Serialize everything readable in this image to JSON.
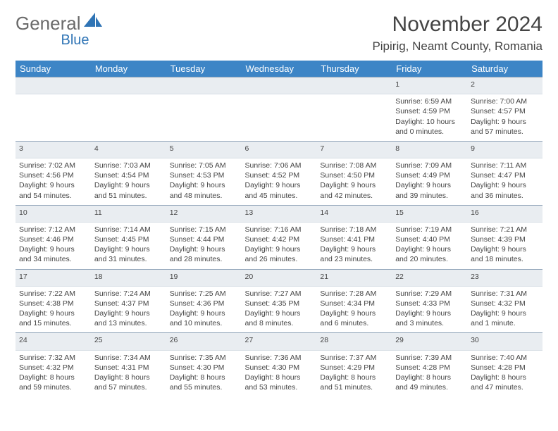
{
  "brand": {
    "part1": "General",
    "part2": "Blue"
  },
  "title": "November 2024",
  "location": "Pipirig, Neamt County, Romania",
  "colors": {
    "header_bg": "#3d85c6",
    "header_text": "#ffffff",
    "daynum_bg": "#e9edf1",
    "daynum_border_top": "#8fa3b8",
    "body_text": "#444444",
    "brand_blue": "#2f74b5",
    "brand_gray": "#6a6a6a"
  },
  "daysOfWeek": [
    "Sunday",
    "Monday",
    "Tuesday",
    "Wednesday",
    "Thursday",
    "Friday",
    "Saturday"
  ],
  "weeks": [
    {
      "nums": [
        "",
        "",
        "",
        "",
        "",
        "1",
        "2"
      ],
      "cells": [
        null,
        null,
        null,
        null,
        null,
        {
          "sunrise": "Sunrise: 6:59 AM",
          "sunset": "Sunset: 4:59 PM",
          "day1": "Daylight: 10 hours",
          "day2": "and 0 minutes."
        },
        {
          "sunrise": "Sunrise: 7:00 AM",
          "sunset": "Sunset: 4:57 PM",
          "day1": "Daylight: 9 hours",
          "day2": "and 57 minutes."
        }
      ]
    },
    {
      "nums": [
        "3",
        "4",
        "5",
        "6",
        "7",
        "8",
        "9"
      ],
      "cells": [
        {
          "sunrise": "Sunrise: 7:02 AM",
          "sunset": "Sunset: 4:56 PM",
          "day1": "Daylight: 9 hours",
          "day2": "and 54 minutes."
        },
        {
          "sunrise": "Sunrise: 7:03 AM",
          "sunset": "Sunset: 4:54 PM",
          "day1": "Daylight: 9 hours",
          "day2": "and 51 minutes."
        },
        {
          "sunrise": "Sunrise: 7:05 AM",
          "sunset": "Sunset: 4:53 PM",
          "day1": "Daylight: 9 hours",
          "day2": "and 48 minutes."
        },
        {
          "sunrise": "Sunrise: 7:06 AM",
          "sunset": "Sunset: 4:52 PM",
          "day1": "Daylight: 9 hours",
          "day2": "and 45 minutes."
        },
        {
          "sunrise": "Sunrise: 7:08 AM",
          "sunset": "Sunset: 4:50 PM",
          "day1": "Daylight: 9 hours",
          "day2": "and 42 minutes."
        },
        {
          "sunrise": "Sunrise: 7:09 AM",
          "sunset": "Sunset: 4:49 PM",
          "day1": "Daylight: 9 hours",
          "day2": "and 39 minutes."
        },
        {
          "sunrise": "Sunrise: 7:11 AM",
          "sunset": "Sunset: 4:47 PM",
          "day1": "Daylight: 9 hours",
          "day2": "and 36 minutes."
        }
      ]
    },
    {
      "nums": [
        "10",
        "11",
        "12",
        "13",
        "14",
        "15",
        "16"
      ],
      "cells": [
        {
          "sunrise": "Sunrise: 7:12 AM",
          "sunset": "Sunset: 4:46 PM",
          "day1": "Daylight: 9 hours",
          "day2": "and 34 minutes."
        },
        {
          "sunrise": "Sunrise: 7:14 AM",
          "sunset": "Sunset: 4:45 PM",
          "day1": "Daylight: 9 hours",
          "day2": "and 31 minutes."
        },
        {
          "sunrise": "Sunrise: 7:15 AM",
          "sunset": "Sunset: 4:44 PM",
          "day1": "Daylight: 9 hours",
          "day2": "and 28 minutes."
        },
        {
          "sunrise": "Sunrise: 7:16 AM",
          "sunset": "Sunset: 4:42 PM",
          "day1": "Daylight: 9 hours",
          "day2": "and 26 minutes."
        },
        {
          "sunrise": "Sunrise: 7:18 AM",
          "sunset": "Sunset: 4:41 PM",
          "day1": "Daylight: 9 hours",
          "day2": "and 23 minutes."
        },
        {
          "sunrise": "Sunrise: 7:19 AM",
          "sunset": "Sunset: 4:40 PM",
          "day1": "Daylight: 9 hours",
          "day2": "and 20 minutes."
        },
        {
          "sunrise": "Sunrise: 7:21 AM",
          "sunset": "Sunset: 4:39 PM",
          "day1": "Daylight: 9 hours",
          "day2": "and 18 minutes."
        }
      ]
    },
    {
      "nums": [
        "17",
        "18",
        "19",
        "20",
        "21",
        "22",
        "23"
      ],
      "cells": [
        {
          "sunrise": "Sunrise: 7:22 AM",
          "sunset": "Sunset: 4:38 PM",
          "day1": "Daylight: 9 hours",
          "day2": "and 15 minutes."
        },
        {
          "sunrise": "Sunrise: 7:24 AM",
          "sunset": "Sunset: 4:37 PM",
          "day1": "Daylight: 9 hours",
          "day2": "and 13 minutes."
        },
        {
          "sunrise": "Sunrise: 7:25 AM",
          "sunset": "Sunset: 4:36 PM",
          "day1": "Daylight: 9 hours",
          "day2": "and 10 minutes."
        },
        {
          "sunrise": "Sunrise: 7:27 AM",
          "sunset": "Sunset: 4:35 PM",
          "day1": "Daylight: 9 hours",
          "day2": "and 8 minutes."
        },
        {
          "sunrise": "Sunrise: 7:28 AM",
          "sunset": "Sunset: 4:34 PM",
          "day1": "Daylight: 9 hours",
          "day2": "and 6 minutes."
        },
        {
          "sunrise": "Sunrise: 7:29 AM",
          "sunset": "Sunset: 4:33 PM",
          "day1": "Daylight: 9 hours",
          "day2": "and 3 minutes."
        },
        {
          "sunrise": "Sunrise: 7:31 AM",
          "sunset": "Sunset: 4:32 PM",
          "day1": "Daylight: 9 hours",
          "day2": "and 1 minute."
        }
      ]
    },
    {
      "nums": [
        "24",
        "25",
        "26",
        "27",
        "28",
        "29",
        "30"
      ],
      "cells": [
        {
          "sunrise": "Sunrise: 7:32 AM",
          "sunset": "Sunset: 4:32 PM",
          "day1": "Daylight: 8 hours",
          "day2": "and 59 minutes."
        },
        {
          "sunrise": "Sunrise: 7:34 AM",
          "sunset": "Sunset: 4:31 PM",
          "day1": "Daylight: 8 hours",
          "day2": "and 57 minutes."
        },
        {
          "sunrise": "Sunrise: 7:35 AM",
          "sunset": "Sunset: 4:30 PM",
          "day1": "Daylight: 8 hours",
          "day2": "and 55 minutes."
        },
        {
          "sunrise": "Sunrise: 7:36 AM",
          "sunset": "Sunset: 4:30 PM",
          "day1": "Daylight: 8 hours",
          "day2": "and 53 minutes."
        },
        {
          "sunrise": "Sunrise: 7:37 AM",
          "sunset": "Sunset: 4:29 PM",
          "day1": "Daylight: 8 hours",
          "day2": "and 51 minutes."
        },
        {
          "sunrise": "Sunrise: 7:39 AM",
          "sunset": "Sunset: 4:28 PM",
          "day1": "Daylight: 8 hours",
          "day2": "and 49 minutes."
        },
        {
          "sunrise": "Sunrise: 7:40 AM",
          "sunset": "Sunset: 4:28 PM",
          "day1": "Daylight: 8 hours",
          "day2": "and 47 minutes."
        }
      ]
    }
  ]
}
